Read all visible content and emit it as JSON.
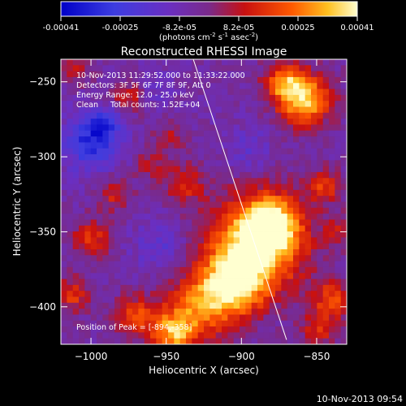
{
  "chart_data": {
    "type": "heatmap",
    "title": "Reconstructed RHESSI Image",
    "xlabel": "Heliocentric X (arcsec)",
    "ylabel": "Heliocentric Y (arcsec)",
    "xlim": [
      -1020,
      -830
    ],
    "ylim": [
      -425,
      -235
    ],
    "xticks": [
      -1000,
      -950,
      -900,
      -850
    ],
    "yticks": [
      -250,
      -300,
      -350,
      -400
    ],
    "colorbar": {
      "min": -0.00041,
      "max": 0.00041,
      "ticks": [
        "-0.00041",
        "-0.00025",
        "-8.2e-05",
        "8.2e-05",
        "0.00025",
        "0.00041"
      ],
      "unit_text": "(photons cm",
      "unit_sup1": "-2",
      "unit_mid": " s",
      "unit_sup2": "-1",
      "unit_end": " asec",
      "unit_sup3": "-2",
      "unit_close": ")"
    },
    "annotations": [
      "10-Nov-2013 11:29:52.000 to 11:33:22.000",
      "Detectors: 3F 5F 6F 7F 8F 9F, Att 0",
      "Energy Range: 12.0 - 25.0 keV",
      "Clean     Total counts: 1.52E+04"
    ],
    "peak_label": "Position of Peak = [-894,-358]",
    "footer": "10-Nov-2013 09:54",
    "blobs": [
      {
        "x": -890,
        "y": -358,
        "amp": 1.0,
        "s": 22
      },
      {
        "x": -905,
        "y": -385,
        "amp": 0.8,
        "s": 14
      },
      {
        "x": -880,
        "y": -345,
        "amp": 0.7,
        "s": 12
      },
      {
        "x": -858,
        "y": -262,
        "amp": 0.9,
        "s": 12
      },
      {
        "x": -872,
        "y": -250,
        "amp": 0.6,
        "s": 9
      },
      {
        "x": -928,
        "y": -400,
        "amp": 0.6,
        "s": 16
      },
      {
        "x": -945,
        "y": -418,
        "amp": 0.7,
        "s": 10
      },
      {
        "x": -970,
        "y": -407,
        "amp": 0.5,
        "s": 10
      },
      {
        "x": -1000,
        "y": -355,
        "amp": 0.45,
        "s": 9
      },
      {
        "x": -1012,
        "y": -392,
        "amp": 0.45,
        "s": 8
      },
      {
        "x": -975,
        "y": -260,
        "amp": 0.4,
        "s": 8
      },
      {
        "x": -985,
        "y": -325,
        "amp": 0.35,
        "s": 8
      },
      {
        "x": -938,
        "y": -318,
        "amp": 0.4,
        "s": 9
      },
      {
        "x": -960,
        "y": -305,
        "amp": 0.3,
        "s": 7
      },
      {
        "x": -948,
        "y": -287,
        "amp": 0.3,
        "s": 7
      },
      {
        "x": -845,
        "y": -320,
        "amp": 0.45,
        "s": 8
      },
      {
        "x": -840,
        "y": -395,
        "amp": 0.5,
        "s": 9
      },
      {
        "x": -848,
        "y": -415,
        "amp": 0.4,
        "s": 8
      },
      {
        "x": -835,
        "y": -350,
        "amp": 0.3,
        "s": 7
      },
      {
        "x": -1010,
        "y": -240,
        "amp": 0.3,
        "s": 8
      }
    ],
    "dips": [
      {
        "x": -1000,
        "y": -290,
        "amp": 0.9,
        "s": 13
      },
      {
        "x": -990,
        "y": -278,
        "amp": 0.5,
        "s": 8
      },
      {
        "x": -955,
        "y": -360,
        "amp": 0.4,
        "s": 12
      },
      {
        "x": -895,
        "y": -295,
        "amp": 0.35,
        "s": 10
      },
      {
        "x": -960,
        "y": -255,
        "amp": 0.3,
        "s": 9
      }
    ],
    "limb_line": {
      "x1": -932,
      "y1": -235,
      "x2": -870,
      "y2": -422
    }
  }
}
